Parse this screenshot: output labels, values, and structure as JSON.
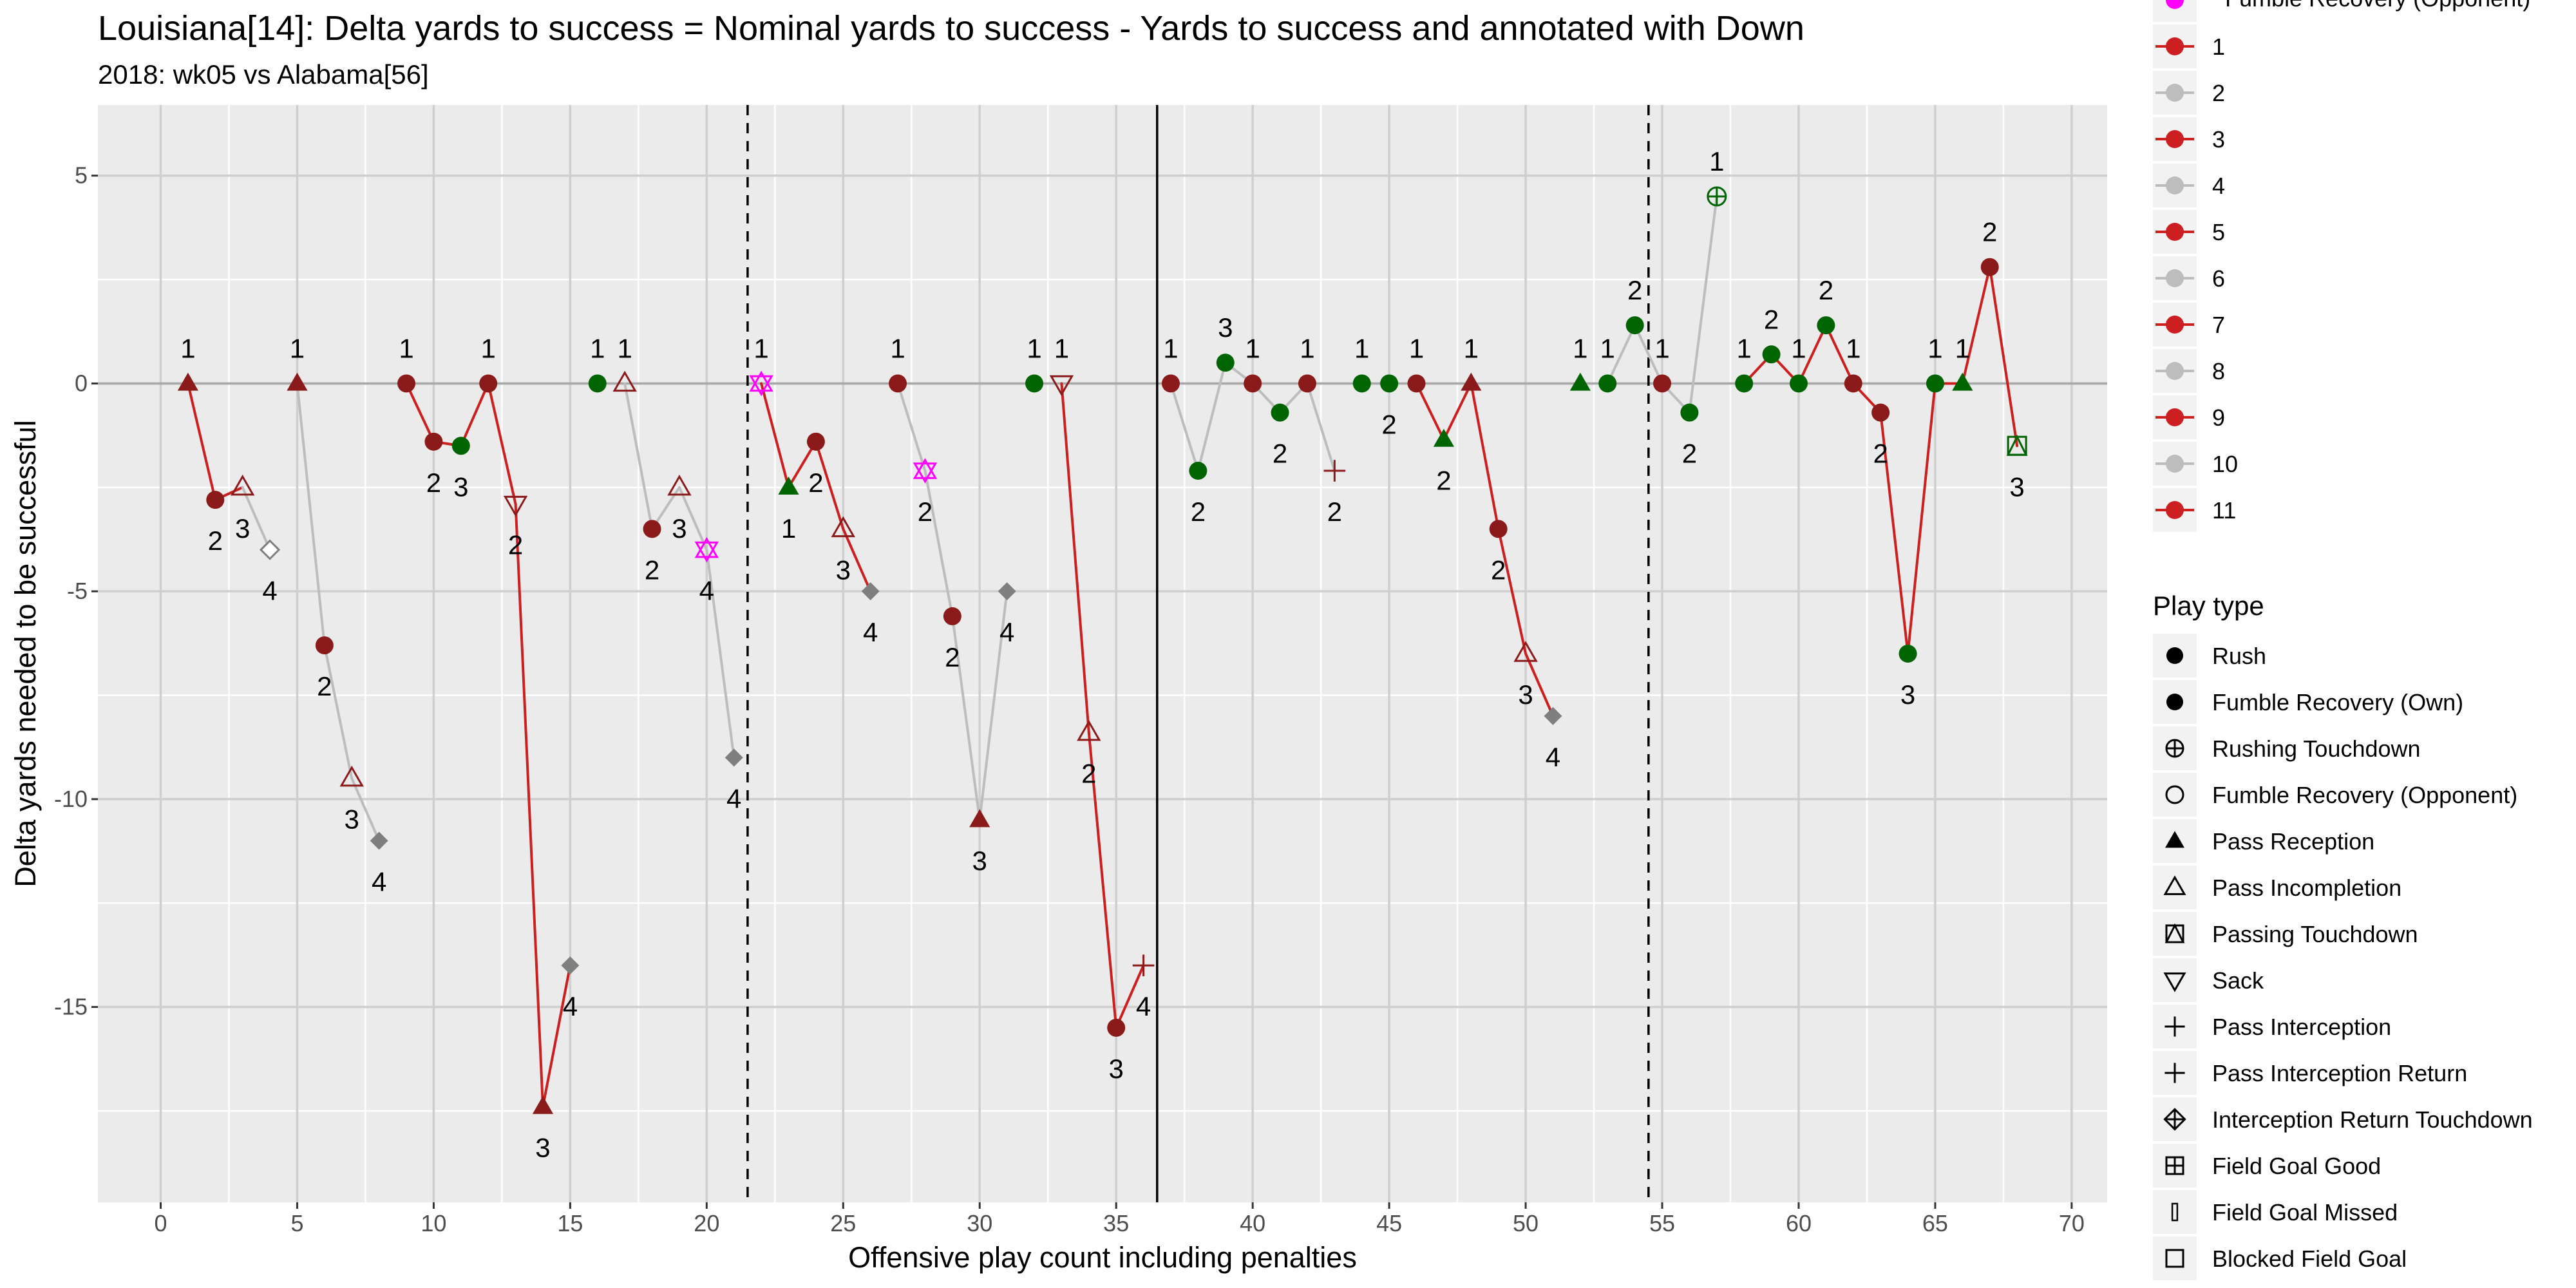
{
  "chart_data": {
    "type": "scatter",
    "title": "Louisiana[14]: Delta yards to success = Nominal yards to success - Yards to success and annotated with Down",
    "subtitle": "2018: wk05 vs Alabama[56]",
    "xlabel": "Offensive play count including penalties",
    "ylabel": "Delta yards needed to be successful",
    "xlim": [
      -2.3,
      71.3
    ],
    "ylim": [
      -19.7,
      6.7
    ],
    "x_ticks": [
      0,
      5,
      10,
      15,
      20,
      25,
      30,
      35,
      40,
      45,
      50,
      55,
      60,
      65,
      70
    ],
    "y_ticks": [
      5,
      0,
      -5,
      -10,
      -15
    ],
    "grid": true,
    "vlines": [
      {
        "x": 21.5,
        "style": "dashed"
      },
      {
        "x": 36.5,
        "style": "solid"
      },
      {
        "x": 54.5,
        "style": "dashed"
      }
    ],
    "points": [
      {
        "x": 1,
        "y": 0,
        "down": 1,
        "shape": "triangle-filled",
        "color": "#8B1A1A",
        "drive": 1
      },
      {
        "x": 2,
        "y": -2.8,
        "down": 2,
        "shape": "circle",
        "color": "#8B1A1A",
        "drive": 1
      },
      {
        "x": 3,
        "y": -2.5,
        "down": 3,
        "shape": "triangle-open",
        "color": "#8B1A1A",
        "drive": 1
      },
      {
        "x": 4,
        "y": -4,
        "down": 4,
        "shape": "diamond-open",
        "color": "#7f7f7f",
        "drive": 1
      },
      {
        "x": 5,
        "y": 0,
        "down": 1,
        "shape": "triangle-filled",
        "color": "#8B1A1A",
        "drive": 2
      },
      {
        "x": 6,
        "y": -6.3,
        "down": 2,
        "shape": "circle",
        "color": "#8B1A1A",
        "drive": 2
      },
      {
        "x": 7,
        "y": -9.5,
        "down": 3,
        "shape": "triangle-open",
        "color": "#8B1A1A",
        "drive": 2
      },
      {
        "x": 8,
        "y": -11,
        "down": 4,
        "shape": "diamond",
        "color": "#7f7f7f",
        "drive": 2
      },
      {
        "x": 9,
        "y": 0,
        "down": 1,
        "shape": "circle",
        "color": "#8B1A1A",
        "drive": 3
      },
      {
        "x": 10,
        "y": -1.4,
        "down": 2,
        "shape": "circle",
        "color": "#8B1A1A",
        "drive": 3
      },
      {
        "x": 11,
        "y": -1.5,
        "down": 3,
        "shape": "circle",
        "color": "#006400",
        "drive": 3
      },
      {
        "x": 12,
        "y": 0,
        "down": 1,
        "shape": "circle",
        "color": "#8B1A1A",
        "drive": 3
      },
      {
        "x": 13,
        "y": -2.9,
        "down": 2,
        "shape": "triangle-down-open",
        "color": "#8B1A1A",
        "drive": 3
      },
      {
        "x": 14,
        "y": -17.4,
        "down": 3,
        "shape": "triangle-filled",
        "color": "#8B1A1A",
        "drive": 3
      },
      {
        "x": 15,
        "y": -14,
        "down": 4,
        "shape": "diamond",
        "color": "#7f7f7f",
        "drive": 3
      },
      {
        "x": 16,
        "y": 0,
        "down": 1,
        "shape": "circle",
        "color": "#006400",
        "drive": 4
      },
      {
        "x": 17,
        "y": 0,
        "down": 1,
        "shape": "triangle-open",
        "color": "#8B1A1A",
        "drive": 5
      },
      {
        "x": 18,
        "y": -3.5,
        "down": 2,
        "shape": "circle",
        "color": "#8B1A1A",
        "drive": 5
      },
      {
        "x": 19,
        "y": -2.5,
        "down": 3,
        "shape": "triangle-open",
        "color": "#8B1A1A",
        "drive": 5
      },
      {
        "x": 20,
        "y": -4,
        "down": 4,
        "shape": "star-of-david",
        "color": "#FF00FF",
        "drive": 5
      },
      {
        "x": 21,
        "y": -9,
        "down": 4,
        "shape": "diamond",
        "color": "#7f7f7f",
        "drive": 5
      },
      {
        "x": 22,
        "y": 0,
        "down": 1,
        "shape": "star-of-david",
        "color": "#FF00FF",
        "drive": 6
      },
      {
        "x": 23,
        "y": -2.5,
        "down": 1,
        "shape": "triangle-filled",
        "color": "#006400",
        "drive": 6
      },
      {
        "x": 24,
        "y": -1.4,
        "down": 2,
        "shape": "circle",
        "color": "#8B1A1A",
        "drive": 6
      },
      {
        "x": 25,
        "y": -3.5,
        "down": 3,
        "shape": "triangle-open",
        "color": "#8B1A1A",
        "drive": 6
      },
      {
        "x": 26,
        "y": -5,
        "down": 4,
        "shape": "diamond",
        "color": "#7f7f7f",
        "drive": 6
      },
      {
        "x": 27,
        "y": 0,
        "down": 1,
        "shape": "circle",
        "color": "#8B1A1A",
        "drive": 7
      },
      {
        "x": 28,
        "y": -2.1,
        "down": 2,
        "shape": "star-of-david",
        "color": "#FF00FF",
        "drive": 7
      },
      {
        "x": 29,
        "y": -5.6,
        "down": 2,
        "shape": "circle",
        "color": "#8B1A1A",
        "drive": 7
      },
      {
        "x": 30,
        "y": -10.5,
        "down": 3,
        "shape": "triangle-filled",
        "color": "#8B1A1A",
        "drive": 7
      },
      {
        "x": 31,
        "y": -5,
        "down": 4,
        "shape": "diamond",
        "color": "#7f7f7f",
        "drive": 7
      },
      {
        "x": 32,
        "y": 0,
        "down": 1,
        "shape": "circle",
        "color": "#006400",
        "drive": 8
      },
      {
        "x": 33,
        "y": 0,
        "down": 1,
        "shape": "triangle-down-open",
        "color": "#8B1A1A",
        "drive": 9
      },
      {
        "x": 34,
        "y": -8.4,
        "down": 2,
        "shape": "triangle-open",
        "color": "#8B1A1A",
        "drive": 9
      },
      {
        "x": 35,
        "y": -15.5,
        "down": 3,
        "shape": "circle",
        "color": "#8B1A1A",
        "drive": 9
      },
      {
        "x": 36,
        "y": -14,
        "down": 4,
        "shape": "plus",
        "color": "#8B1A1A",
        "drive": 9
      },
      {
        "x": 37,
        "y": 0,
        "down": 1,
        "shape": "circle",
        "color": "#8B1A1A",
        "drive": 10
      },
      {
        "x": 38,
        "y": -2.1,
        "down": 2,
        "shape": "circle",
        "color": "#006400",
        "drive": 10
      },
      {
        "x": 39,
        "y": 0.5,
        "down": 3,
        "shape": "circle",
        "color": "#006400",
        "drive": 10
      },
      {
        "x": 40,
        "y": 0,
        "down": 1,
        "shape": "circle",
        "color": "#8B1A1A",
        "drive": 10
      },
      {
        "x": 41,
        "y": -0.7,
        "down": 2,
        "shape": "circle",
        "color": "#006400",
        "drive": 10
      },
      {
        "x": 42,
        "y": 0,
        "down": 1,
        "shape": "circle",
        "color": "#8B1A1A",
        "drive": 10
      },
      {
        "x": 43,
        "y": -2.1,
        "down": 2,
        "shape": "plus",
        "color": "#8B1A1A",
        "drive": 10
      },
      {
        "x": 44,
        "y": 0,
        "down": 1,
        "shape": "circle",
        "color": "#006400",
        "drive": 11
      },
      {
        "x": 45,
        "y": 0,
        "down": 2,
        "shape": "circle",
        "color": "#006400",
        "drive": 11
      },
      {
        "x": 46,
        "y": 0,
        "down": 1,
        "shape": "circle",
        "color": "#8B1A1A",
        "drive": 11
      },
      {
        "x": 47,
        "y": -1.35,
        "down": 2,
        "shape": "triangle-filled",
        "color": "#006400",
        "drive": 11
      },
      {
        "x": 48,
        "y": 0,
        "down": 1,
        "shape": "triangle-filled",
        "color": "#8B1A1A",
        "drive": 11
      },
      {
        "x": 49,
        "y": -3.5,
        "down": 2,
        "shape": "circle",
        "color": "#8B1A1A",
        "drive": 11
      },
      {
        "x": 50,
        "y": -6.5,
        "down": 3,
        "shape": "triangle-open",
        "color": "#8B1A1A",
        "drive": 11
      },
      {
        "x": 51,
        "y": -8,
        "down": 4,
        "shape": "diamond",
        "color": "#7f7f7f",
        "drive": 11
      },
      {
        "x": 52,
        "y": 0,
        "down": 1,
        "shape": "triangle-filled",
        "color": "#006400",
        "drive": 12
      },
      {
        "x": 53,
        "y": 0,
        "down": 1,
        "shape": "circle",
        "color": "#006400",
        "drive": 12
      },
      {
        "x": 54,
        "y": 1.4,
        "down": 2,
        "shape": "circle",
        "color": "#006400",
        "drive": 12
      },
      {
        "x": 55,
        "y": 0,
        "down": 1,
        "shape": "circle",
        "color": "#8B1A1A",
        "drive": 12
      },
      {
        "x": 56,
        "y": -0.7,
        "down": 2,
        "shape": "circle",
        "color": "#006400",
        "drive": 12
      },
      {
        "x": 57,
        "y": 4.5,
        "down": 1,
        "shape": "circle-plus",
        "color": "#006400",
        "drive": 12
      },
      {
        "x": 58,
        "y": 0,
        "down": 1,
        "shape": "circle",
        "color": "#006400",
        "drive": 13
      },
      {
        "x": 59,
        "y": 0.7,
        "down": 2,
        "shape": "circle",
        "color": "#006400",
        "drive": 13
      },
      {
        "x": 60,
        "y": 0,
        "down": 1,
        "shape": "circle",
        "color": "#006400",
        "drive": 13
      },
      {
        "x": 61,
        "y": 1.4,
        "down": 2,
        "shape": "circle",
        "color": "#006400",
        "drive": 13
      },
      {
        "x": 62,
        "y": 0,
        "down": 1,
        "shape": "circle",
        "color": "#8B1A1A",
        "drive": 13
      },
      {
        "x": 63,
        "y": -0.7,
        "down": 2,
        "shape": "circle",
        "color": "#8B1A1A",
        "drive": 13
      },
      {
        "x": 64,
        "y": -6.5,
        "down": 3,
        "shape": "circle",
        "color": "#006400",
        "drive": 13
      },
      {
        "x": 65,
        "y": 0,
        "down": 1,
        "shape": "circle",
        "color": "#006400",
        "drive": 13
      },
      {
        "x": 66,
        "y": 0,
        "down": 1,
        "shape": "triangle-filled",
        "color": "#006400",
        "drive": 13
      },
      {
        "x": 67,
        "y": 2.8,
        "down": 2,
        "shape": "circle",
        "color": "#8B1A1A",
        "drive": 13
      },
      {
        "x": 68,
        "y": -1.5,
        "down": 3,
        "shape": "square-triangle",
        "color": "#006400",
        "drive": 13
      }
    ],
    "segments": [
      {
        "from": 1,
        "to": 2,
        "color": "#CC1F1F"
      },
      {
        "from": 2,
        "to": 3,
        "color": "#CC1F1F"
      },
      {
        "from": 3,
        "to": 4,
        "color": "#bdbdbd"
      },
      {
        "from": 5,
        "to": 6,
        "color": "#bdbdbd"
      },
      {
        "from": 6,
        "to": 7,
        "color": "#bdbdbd"
      },
      {
        "from": 7,
        "to": 8,
        "color": "#bdbdbd"
      },
      {
        "from": 9,
        "to": 10,
        "color": "#CC1F1F"
      },
      {
        "from": 10,
        "to": 11,
        "color": "#CC1F1F"
      },
      {
        "from": 11,
        "to": 12,
        "color": "#CC1F1F"
      },
      {
        "from": 12,
        "to": 13,
        "color": "#CC1F1F"
      },
      {
        "from": 13,
        "to": 14,
        "color": "#CC1F1F"
      },
      {
        "from": 14,
        "to": 15,
        "color": "#CC1F1F"
      },
      {
        "from": 17,
        "to": 18,
        "color": "#bdbdbd"
      },
      {
        "from": 18,
        "to": 19,
        "color": "#bdbdbd"
      },
      {
        "from": 19,
        "to": 20,
        "color": "#bdbdbd"
      },
      {
        "from": 20,
        "to": 21,
        "color": "#bdbdbd"
      },
      {
        "from": 22,
        "to": 23,
        "color": "#CC1F1F"
      },
      {
        "from": 23,
        "to": 24,
        "color": "#CC1F1F"
      },
      {
        "from": 24,
        "to": 25,
        "color": "#CC1F1F"
      },
      {
        "from": 25,
        "to": 26,
        "color": "#CC1F1F"
      },
      {
        "from": 27,
        "to": 28,
        "color": "#bdbdbd"
      },
      {
        "from": 28,
        "to": 29,
        "color": "#bdbdbd"
      },
      {
        "from": 29,
        "to": 30,
        "color": "#bdbdbd"
      },
      {
        "from": 30,
        "to": 31,
        "color": "#bdbdbd"
      },
      {
        "from": 33,
        "to": 34,
        "color": "#CC1F1F"
      },
      {
        "from": 34,
        "to": 35,
        "color": "#CC1F1F"
      },
      {
        "from": 35,
        "to": 36,
        "color": "#CC1F1F"
      },
      {
        "from": 37,
        "to": 38,
        "color": "#bdbdbd"
      },
      {
        "from": 38,
        "to": 39,
        "color": "#bdbdbd"
      },
      {
        "from": 39,
        "to": 40,
        "color": "#bdbdbd"
      },
      {
        "from": 40,
        "to": 41,
        "color": "#bdbdbd"
      },
      {
        "from": 41,
        "to": 42,
        "color": "#bdbdbd"
      },
      {
        "from": 42,
        "to": 43,
        "color": "#bdbdbd"
      },
      {
        "from": 46,
        "to": 47,
        "color": "#CC1F1F"
      },
      {
        "from": 47,
        "to": 48,
        "color": "#CC1F1F"
      },
      {
        "from": 48,
        "to": 49,
        "color": "#CC1F1F"
      },
      {
        "from": 49,
        "to": 50,
        "color": "#CC1F1F"
      },
      {
        "from": 50,
        "to": 51,
        "color": "#CC1F1F"
      },
      {
        "from": 53,
        "to": 54,
        "color": "#bdbdbd"
      },
      {
        "from": 54,
        "to": 55,
        "color": "#bdbdbd"
      },
      {
        "from": 55,
        "to": 56,
        "color": "#bdbdbd"
      },
      {
        "from": 56,
        "to": 57,
        "color": "#bdbdbd"
      },
      {
        "from": 58,
        "to": 59,
        "color": "#CC1F1F"
      },
      {
        "from": 59,
        "to": 60,
        "color": "#CC1F1F"
      },
      {
        "from": 60,
        "to": 61,
        "color": "#CC1F1F"
      },
      {
        "from": 61,
        "to": 62,
        "color": "#CC1F1F"
      },
      {
        "from": 62,
        "to": 63,
        "color": "#CC1F1F"
      },
      {
        "from": 63,
        "to": 64,
        "color": "#CC1F1F"
      },
      {
        "from": 64,
        "to": 65,
        "color": "#CC1F1F"
      },
      {
        "from": 65,
        "to": 66,
        "color": "#CC1F1F"
      },
      {
        "from": 66,
        "to": 67,
        "color": "#CC1F1F"
      },
      {
        "from": 67,
        "to": 68,
        "color": "#CC1F1F"
      }
    ],
    "legend_drive": {
      "partial_first_label": "Fumble Recovery (Opponent)",
      "items": [
        {
          "label": "1",
          "color": "#CC1F1F"
        },
        {
          "label": "2",
          "color": "#bdbdbd"
        },
        {
          "label": "3",
          "color": "#CC1F1F"
        },
        {
          "label": "4",
          "color": "#bdbdbd"
        },
        {
          "label": "5",
          "color": "#CC1F1F"
        },
        {
          "label": "6",
          "color": "#bdbdbd"
        },
        {
          "label": "7",
          "color": "#CC1F1F"
        },
        {
          "label": "8",
          "color": "#bdbdbd"
        },
        {
          "label": "9",
          "color": "#CC1F1F"
        },
        {
          "label": "10",
          "color": "#bdbdbd"
        },
        {
          "label": "11",
          "color": "#CC1F1F"
        }
      ]
    },
    "legend_playtype": {
      "title": "Play type",
      "items": [
        {
          "label": "Rush",
          "shape": "circle"
        },
        {
          "label": "Fumble Recovery (Own)",
          "shape": "circle"
        },
        {
          "label": "Rushing Touchdown",
          "shape": "circle-plus"
        },
        {
          "label": "Fumble Recovery (Opponent)",
          "shape": "circle-open"
        },
        {
          "label": "Pass Reception",
          "shape": "triangle-filled"
        },
        {
          "label": "Pass Incompletion",
          "shape": "triangle-open"
        },
        {
          "label": "Passing Touchdown",
          "shape": "square-triangle"
        },
        {
          "label": "Sack",
          "shape": "triangle-down-open"
        },
        {
          "label": "Pass Interception",
          "shape": "plus"
        },
        {
          "label": "Pass Interception Return",
          "shape": "plus"
        },
        {
          "label": "Interception Return Touchdown",
          "shape": "diamond-plus"
        },
        {
          "label": "Field Goal Good",
          "shape": "square-plus"
        },
        {
          "label": "Field Goal Missed",
          "shape": "thin-rect"
        },
        {
          "label": "Blocked Field Goal",
          "shape": "square-open"
        }
      ]
    }
  }
}
